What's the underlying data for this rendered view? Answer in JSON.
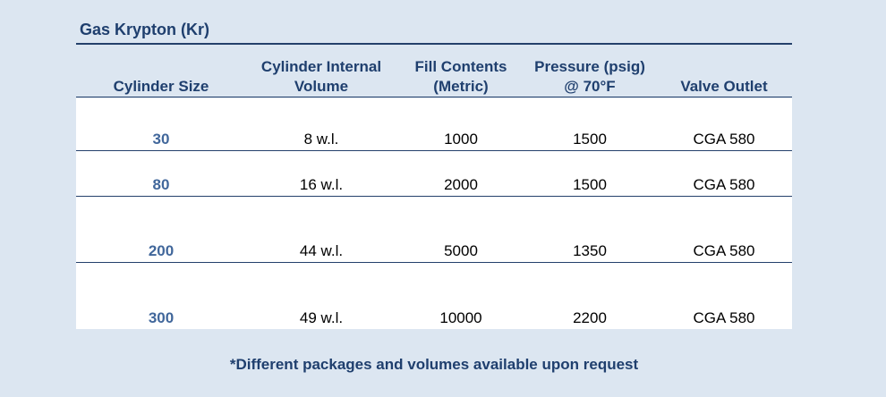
{
  "title": "Gas Krypton (Kr)",
  "headers": [
    "Cylinder Size",
    "Cylinder Internal Volume",
    "Fill Contents (Metric)",
    "Pressure (psig) @ 70°F",
    "Valve Outlet"
  ],
  "rows": [
    [
      "30",
      "8 w.l.",
      "1000",
      "1500",
      "CGA 580"
    ],
    [
      "80",
      "16 w.l.",
      "2000",
      "1500",
      "CGA 580"
    ],
    [
      "200",
      "44 w.l.",
      "5000",
      "1350",
      "CGA 580"
    ],
    [
      "300",
      "49 w.l.",
      "10000",
      "2200",
      "CGA 580"
    ]
  ],
  "footnote": "*Different packages and volumes available upon request",
  "colors": {
    "background": "#dce6f1",
    "heading": "#1f3f6e",
    "size_text": "#41679b",
    "rule": "#24406b"
  }
}
